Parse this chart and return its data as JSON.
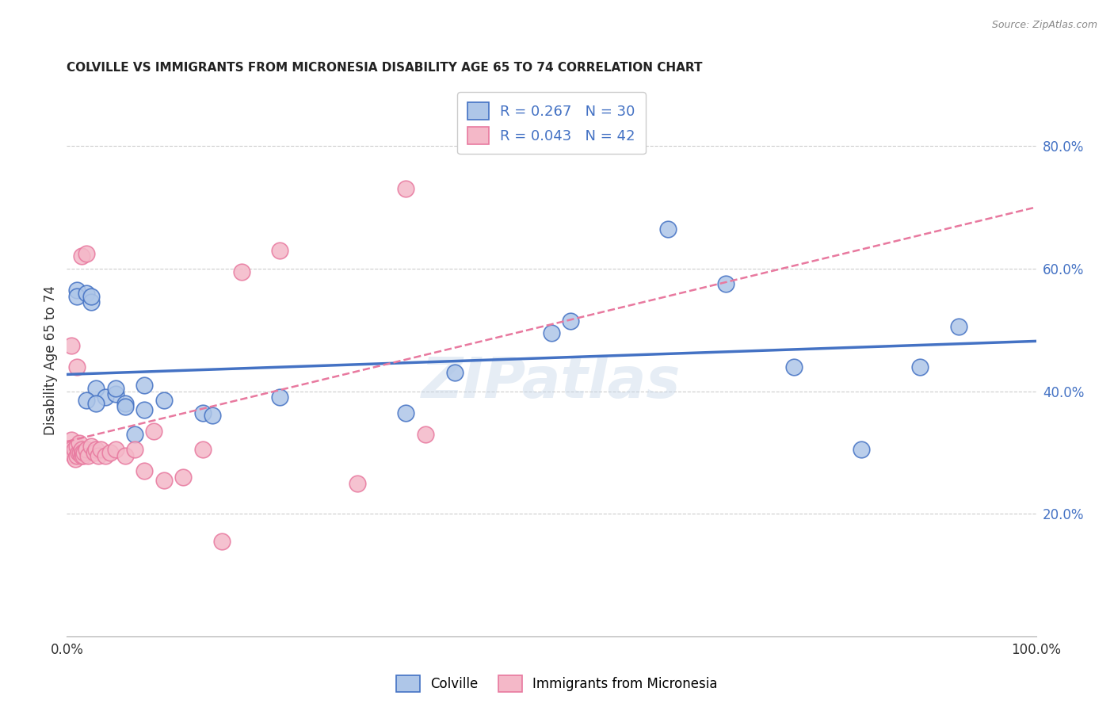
{
  "title": "COLVILLE VS IMMIGRANTS FROM MICRONESIA DISABILITY AGE 65 TO 74 CORRELATION CHART",
  "source": "Source: ZipAtlas.com",
  "ylabel": "Disability Age 65 to 74",
  "legend_label1": "Colville",
  "legend_label2": "Immigrants from Micronesia",
  "r1": 0.267,
  "n1": 30,
  "r2": 0.043,
  "n2": 42,
  "color1": "#aec6e8",
  "color2": "#f4b8c8",
  "line_color1": "#4472c4",
  "line_color2": "#e8799f",
  "xlim": [
    0.0,
    1.0
  ],
  "ylim": [
    0.0,
    0.9
  ],
  "yticks": [
    0.2,
    0.4,
    0.6,
    0.8
  ],
  "ytick_labels": [
    "20.0%",
    "40.0%",
    "60.0%",
    "80.0%"
  ],
  "background_color": "#ffffff",
  "grid_color": "#cccccc",
  "blue_x": [
    0.01,
    0.01,
    0.02,
    0.025,
    0.025,
    0.03,
    0.04,
    0.05,
    0.05,
    0.06,
    0.08,
    0.1,
    0.14,
    0.22,
    0.35,
    0.4,
    0.5,
    0.52,
    0.62,
    0.68,
    0.75,
    0.82,
    0.88,
    0.92,
    0.02,
    0.03,
    0.06,
    0.07,
    0.08,
    0.15
  ],
  "blue_y": [
    0.565,
    0.555,
    0.56,
    0.545,
    0.555,
    0.405,
    0.39,
    0.395,
    0.405,
    0.38,
    0.41,
    0.385,
    0.365,
    0.39,
    0.365,
    0.43,
    0.495,
    0.515,
    0.665,
    0.575,
    0.44,
    0.305,
    0.44,
    0.505,
    0.385,
    0.38,
    0.375,
    0.33,
    0.37,
    0.36
  ],
  "pink_x": [
    0.005,
    0.005,
    0.007,
    0.008,
    0.009,
    0.01,
    0.01,
    0.012,
    0.013,
    0.014,
    0.015,
    0.015,
    0.016,
    0.017,
    0.018,
    0.02,
    0.022,
    0.025,
    0.028,
    0.03,
    0.032,
    0.035,
    0.04,
    0.045,
    0.05,
    0.06,
    0.07,
    0.08,
    0.09,
    0.1,
    0.12,
    0.14,
    0.16,
    0.18,
    0.22,
    0.3,
    0.35,
    0.37,
    0.005,
    0.01,
    0.015,
    0.02
  ],
  "pink_y": [
    0.32,
    0.305,
    0.295,
    0.305,
    0.29,
    0.295,
    0.31,
    0.3,
    0.315,
    0.3,
    0.295,
    0.305,
    0.3,
    0.295,
    0.3,
    0.305,
    0.295,
    0.31,
    0.3,
    0.305,
    0.295,
    0.305,
    0.295,
    0.3,
    0.305,
    0.295,
    0.305,
    0.27,
    0.335,
    0.255,
    0.26,
    0.305,
    0.155,
    0.595,
    0.63,
    0.25,
    0.73,
    0.33,
    0.475,
    0.44,
    0.62,
    0.625
  ],
  "watermark": "ZIPatlas"
}
